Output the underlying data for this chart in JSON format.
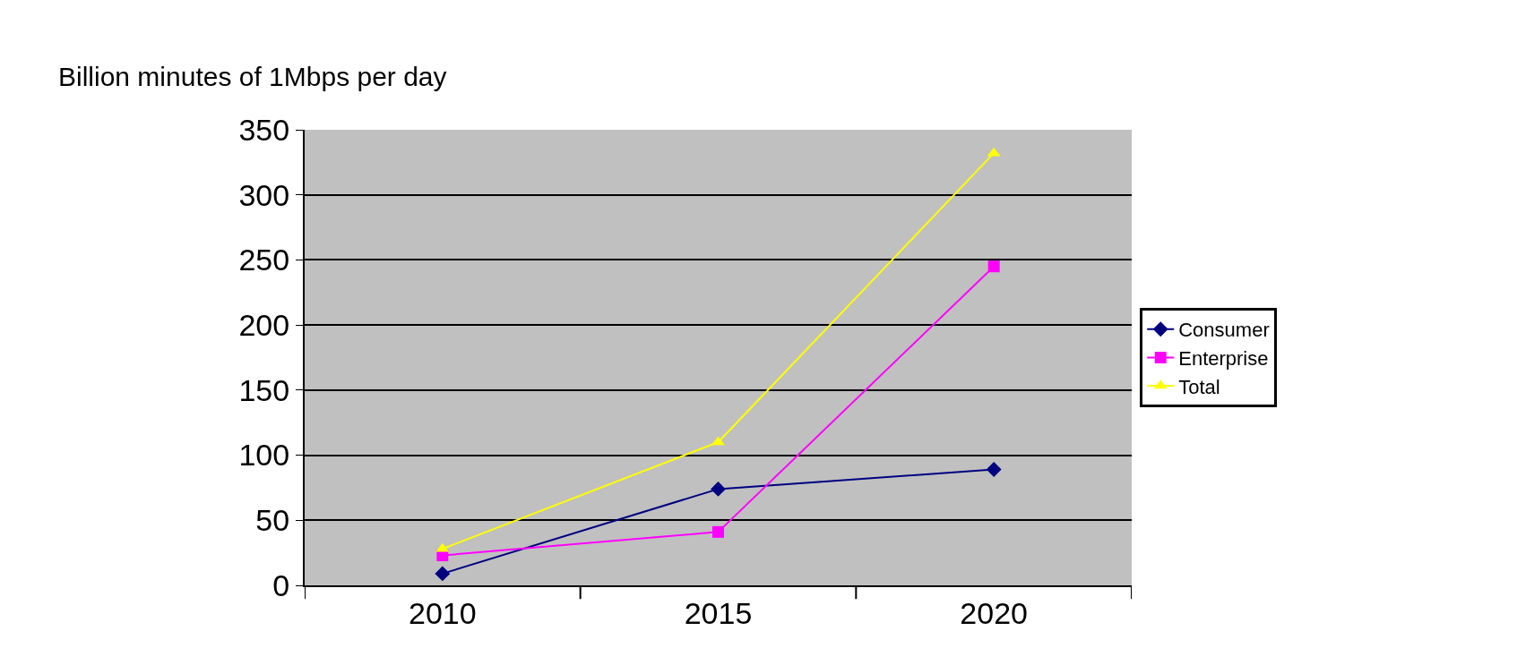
{
  "chart_data": {
    "type": "line",
    "ylabel": "Billion minutes of 1Mbps per day",
    "categories": [
      "2010",
      "2015",
      "2020"
    ],
    "series": [
      {
        "name": "Consumer",
        "color": "#000080",
        "marker": "diamond",
        "values": [
          9,
          74,
          89
        ]
      },
      {
        "name": "Enterprise",
        "color": "#ff00ff",
        "marker": "square",
        "values": [
          23,
          41,
          245
        ]
      },
      {
        "name": "Total",
        "color": "#ffff00",
        "marker": "triangle",
        "values": [
          28,
          110,
          332
        ]
      }
    ],
    "ylim": [
      0,
      350
    ],
    "yticks": [
      0,
      50,
      100,
      150,
      200,
      250,
      300,
      350
    ],
    "grid": "y",
    "legend": "right",
    "line_style": "solid"
  }
}
